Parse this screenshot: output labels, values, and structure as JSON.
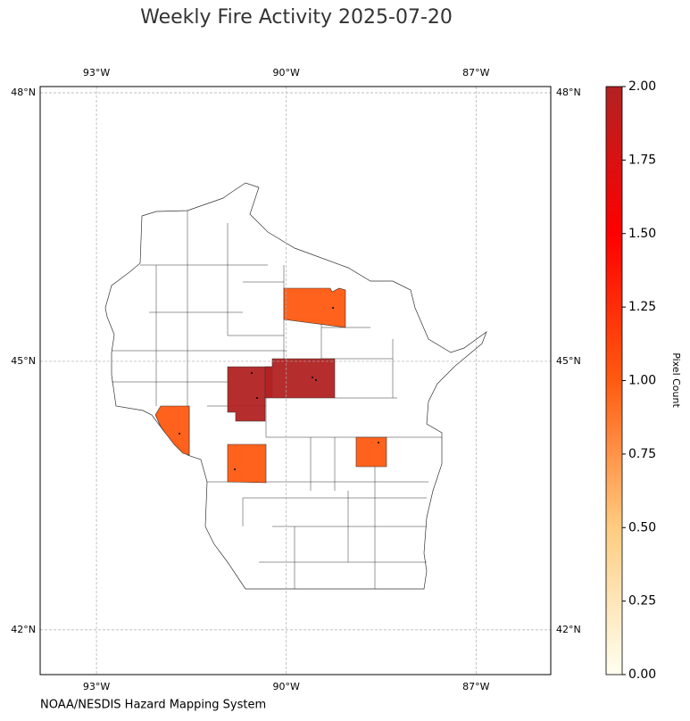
{
  "chart_data": {
    "type": "choropleth",
    "title": "Weekly Fire Activity 2025-07-20",
    "source": "NOAA/NESDIS Hazard Mapping System",
    "xlim": [
      -93.89,
      -85.82
    ],
    "ylim": [
      41.5,
      48.07
    ],
    "xticks": [
      {
        "value": -93,
        "label": "93°W"
      },
      {
        "value": -90,
        "label": "90°W"
      },
      {
        "value": -87,
        "label": "87°W"
      }
    ],
    "yticks": [
      {
        "value": 42,
        "label": "42°N"
      },
      {
        "value": 45,
        "label": "45°N"
      },
      {
        "value": 48,
        "label": "48°N"
      }
    ],
    "grid": true,
    "regions": {
      "values": [
        1,
        2,
        2,
        1,
        1,
        1
      ]
    },
    "colorbar": {
      "label": "Pixel Count",
      "clim": [
        0,
        2
      ],
      "colors": [
        "#fffff0",
        "#ffcc80",
        "#ff5a10",
        "#ff0000",
        "#b22222"
      ],
      "ticks": [
        {
          "value": 0,
          "label": "0.00"
        },
        {
          "value": 0.25,
          "label": "0.25"
        },
        {
          "value": 0.5,
          "label": "0.50"
        },
        {
          "value": 0.75,
          "label": "0.75"
        },
        {
          "value": 1,
          "label": "1.00"
        },
        {
          "value": 1.25,
          "label": "1.25"
        },
        {
          "value": 1.5,
          "label": "1.50"
        },
        {
          "value": 1.75,
          "label": "1.75"
        },
        {
          "value": 2,
          "label": "2.00"
        }
      ]
    }
  }
}
